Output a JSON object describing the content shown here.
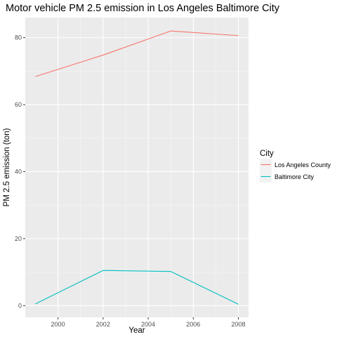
{
  "chart_data": {
    "type": "line",
    "title": "Motor vehicle PM 2.5 emission in Los Angeles Baltimore City",
    "xlabel": "Year",
    "ylabel": "PM 2.5 emission (ton)",
    "x": [
      1999,
      2002,
      2005,
      2008
    ],
    "xlim": [
      1998.55,
      2008.45
    ],
    "ylim": [
      -3.5,
      86
    ],
    "x_ticks": [
      2000,
      2002,
      2004,
      2006,
      2008
    ],
    "y_ticks": [
      0,
      20,
      40,
      60,
      80
    ],
    "grid": true,
    "legend": {
      "title": "City",
      "placement": "right"
    },
    "series": [
      {
        "name": "Los Angeles County",
        "color": "#F8766D",
        "values": [
          68.4,
          74.8,
          82.0,
          80.6
        ]
      },
      {
        "name": "Baltimore City",
        "color": "#00BFC4",
        "values": [
          0.5,
          10.5,
          10.2,
          0.4
        ]
      }
    ]
  }
}
